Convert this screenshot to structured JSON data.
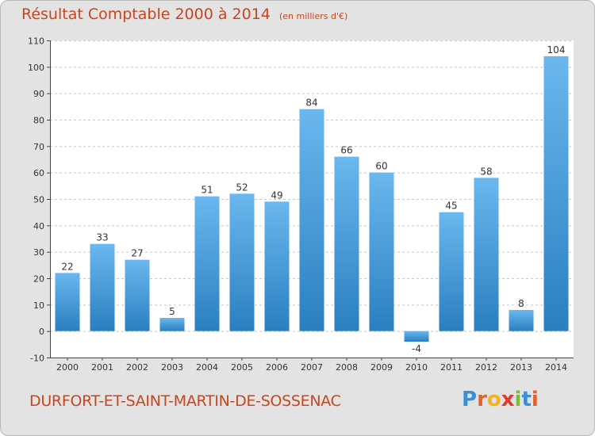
{
  "header": {
    "title": "Résultat Comptable 2000 à 2014",
    "subtitle": "(en milliers d'€)"
  },
  "footer": {
    "commune": "DURFORT-ET-SAINT-MARTIN-DE-SOSSENAC",
    "brand_letters": [
      {
        "char": "P",
        "color": "#3a8fd6"
      },
      {
        "char": "r",
        "color": "#e0632a"
      },
      {
        "char": "o",
        "color": "#f2b21e"
      },
      {
        "char": "x",
        "color": "#e03a2e"
      },
      {
        "char": "i",
        "color": "#7bbd3a"
      },
      {
        "char": "t",
        "color": "#3a8fd6"
      },
      {
        "char": "i",
        "color": "#e0632a"
      }
    ]
  },
  "colors": {
    "title": "#c8461e",
    "bar_top": "#6bb7ee",
    "bar_bottom": "#2a7fc0",
    "grid": "#c8c8c8",
    "axis": "#444444",
    "plot_bg": "#ffffff"
  },
  "chart_data": {
    "type": "bar",
    "title": "Résultat Comptable 2000 à 2014",
    "subtitle": "(en milliers d'€)",
    "categories": [
      "2000",
      "2001",
      "2002",
      "2003",
      "2004",
      "2005",
      "2006",
      "2007",
      "2008",
      "2009",
      "2010",
      "2011",
      "2012",
      "2013",
      "2014"
    ],
    "values": [
      22,
      33,
      27,
      5,
      51,
      52,
      49,
      84,
      66,
      60,
      -4,
      45,
      58,
      8,
      104
    ],
    "ylim": [
      -10,
      110
    ],
    "yticks": [
      -10,
      0,
      10,
      20,
      30,
      40,
      50,
      60,
      70,
      80,
      90,
      100,
      110
    ],
    "grid": true,
    "legend": "none"
  }
}
